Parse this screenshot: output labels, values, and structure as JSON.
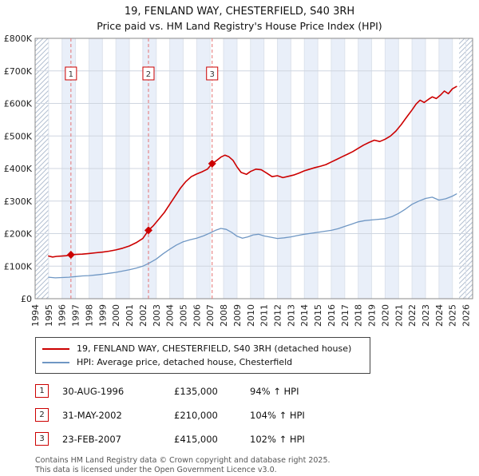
{
  "header": {
    "title": "19, FENLAND WAY, CHESTERFIELD, S40 3RH",
    "subtitle": "Price paid vs. HM Land Registry's House Price Index (HPI)"
  },
  "legend": {
    "items": [
      {
        "label": "19, FENLAND WAY, CHESTERFIELD, S40 3RH (detached house)",
        "color": "#cc0000"
      },
      {
        "label": "HPI: Average price, detached house, Chesterfield",
        "color": "#6f97c4"
      }
    ]
  },
  "sales": [
    {
      "num": "1",
      "date": "30-AUG-1996",
      "price": "£135,000",
      "hpi": "94% ↑ HPI"
    },
    {
      "num": "2",
      "date": "31-MAY-2002",
      "price": "£210,000",
      "hpi": "104% ↑ HPI"
    },
    {
      "num": "3",
      "date": "23-FEB-2007",
      "price": "£415,000",
      "hpi": "102% ↑ HPI"
    }
  ],
  "footer": {
    "line1": "Contains HM Land Registry data © Crown copyright and database right 2025.",
    "line2": "This data is licensed under the Open Government Licence v3.0."
  },
  "chart_data": {
    "type": "line",
    "title": "19, FENLAND WAY, CHESTERFIELD, S40 3RH",
    "subtitle": "Price paid vs. HM Land Registry's House Price Index (HPI)",
    "y_units": "GBP thousands",
    "x_axis": {
      "range": [
        1994,
        2026.5
      ],
      "tick_start": 1994,
      "tick_end": 2026
    },
    "y_axis": {
      "range": [
        0,
        800
      ],
      "ticks": [
        {
          "v": 0,
          "label": "£0"
        },
        {
          "v": 100,
          "label": "£100K"
        },
        {
          "v": 200,
          "label": "£200K"
        },
        {
          "v": 300,
          "label": "£300K"
        },
        {
          "v": 400,
          "label": "£400K"
        },
        {
          "v": 500,
          "label": "£500K"
        },
        {
          "v": 600,
          "label": "£600K"
        },
        {
          "v": 700,
          "label": "£700K"
        },
        {
          "v": 800,
          "label": "£800K"
        }
      ]
    },
    "style": {
      "band_color": "#e9eff9",
      "grid_color": "#cfd6e0",
      "vgrid_color": "#dde3ec",
      "hatch_color": "#b3bfd1",
      "border_color": "#8a8a8a",
      "sale_line_color": "#e57373",
      "marker_box_border": "#cc0000"
    },
    "hatch": {
      "left_end": 1995,
      "right_start": 2025.5
    },
    "series": [
      {
        "name": "19, FENLAND WAY, CHESTERFIELD, S40 3RH (detached house)",
        "color": "#cc0000",
        "width": 1.6,
        "x": [
          1995.0,
          1995.3,
          1995.6,
          1996.0,
          1996.3,
          1996.66,
          1997.0,
          1997.5,
          1998.0,
          1998.5,
          1999.0,
          1999.5,
          2000.0,
          2000.5,
          2001.0,
          2001.5,
          2002.0,
          2002.42,
          2002.8,
          2003.2,
          2003.6,
          2004.0,
          2004.4,
          2004.8,
          2005.2,
          2005.6,
          2006.0,
          2006.4,
          2006.8,
          2007.15,
          2007.5,
          2007.8,
          2008.1,
          2008.4,
          2008.7,
          2009.0,
          2009.3,
          2009.7,
          2010.0,
          2010.4,
          2010.8,
          2011.2,
          2011.6,
          2012.0,
          2012.4,
          2012.8,
          2013.2,
          2013.6,
          2014.0,
          2014.4,
          2014.8,
          2015.2,
          2015.6,
          2016.0,
          2016.4,
          2016.8,
          2017.2,
          2017.6,
          2018.0,
          2018.4,
          2018.8,
          2019.2,
          2019.6,
          2020.0,
          2020.4,
          2020.8,
          2021.2,
          2021.6,
          2022.0,
          2022.3,
          2022.6,
          2022.9,
          2023.2,
          2023.5,
          2023.8,
          2024.1,
          2024.4,
          2024.7,
          2025.0,
          2025.3
        ],
        "y": [
          131,
          128,
          130,
          131,
          132,
          135,
          136,
          137,
          139,
          141,
          143,
          146,
          150,
          155,
          162,
          172,
          185,
          210,
          225,
          245,
          265,
          290,
          315,
          340,
          360,
          375,
          383,
          390,
          398,
          415,
          425,
          435,
          441,
          436,
          425,
          405,
          388,
          382,
          391,
          398,
          396,
          386,
          375,
          378,
          372,
          376,
          380,
          386,
          393,
          398,
          403,
          407,
          412,
          420,
          428,
          436,
          444,
          452,
          462,
          472,
          480,
          487,
          483,
          490,
          500,
          515,
          535,
          558,
          580,
          598,
          610,
          603,
          612,
          620,
          615,
          625,
          638,
          630,
          645,
          652
        ]
      },
      {
        "name": "HPI: Average price, detached house, Chesterfield",
        "color": "#6f97c4",
        "width": 1.3,
        "x": [
          1995.0,
          1995.5,
          1996.0,
          1996.5,
          1997.0,
          1997.5,
          1998.0,
          1998.5,
          1999.0,
          1999.5,
          2000.0,
          2000.5,
          2001.0,
          2001.5,
          2002.0,
          2002.5,
          2003.0,
          2003.5,
          2004.0,
          2004.5,
          2005.0,
          2005.5,
          2006.0,
          2006.5,
          2007.0,
          2007.4,
          2007.8,
          2008.2,
          2008.6,
          2009.0,
          2009.4,
          2009.8,
          2010.2,
          2010.6,
          2011.0,
          2011.5,
          2012.0,
          2012.5,
          2013.0,
          2013.5,
          2014.0,
          2014.5,
          2015.0,
          2015.5,
          2016.0,
          2016.5,
          2017.0,
          2017.5,
          2018.0,
          2018.5,
          2019.0,
          2019.5,
          2020.0,
          2020.5,
          2021.0,
          2021.5,
          2022.0,
          2022.5,
          2023.0,
          2023.5,
          2024.0,
          2024.5,
          2025.0,
          2025.3
        ],
        "y": [
          66,
          64,
          65,
          66,
          68,
          70,
          71,
          73,
          75,
          78,
          81,
          85,
          89,
          94,
          100,
          110,
          122,
          138,
          152,
          165,
          175,
          181,
          186,
          193,
          202,
          210,
          216,
          213,
          204,
          192,
          186,
          190,
          196,
          198,
          193,
          189,
          185,
          187,
          190,
          194,
          198,
          201,
          204,
          207,
          210,
          215,
          222,
          229,
          236,
          240,
          242,
          244,
          246,
          252,
          262,
          275,
          290,
          300,
          308,
          312,
          303,
          307,
          315,
          322
        ]
      }
    ],
    "sale_points": [
      {
        "n": "1",
        "x": 1996.66,
        "y": 135
      },
      {
        "n": "2",
        "x": 2002.42,
        "y": 210
      },
      {
        "n": "3",
        "x": 2007.15,
        "y": 415
      }
    ]
  }
}
